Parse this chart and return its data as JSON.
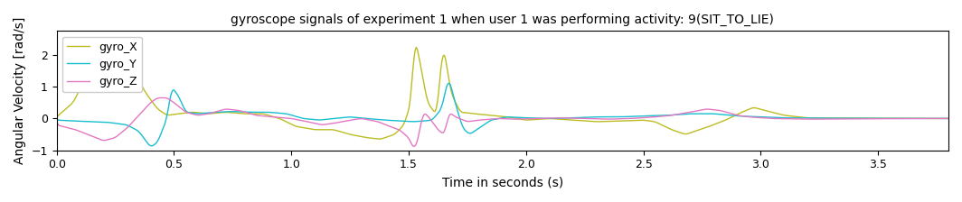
{
  "title": "gyroscope signals of experiment 1 when user 1 was performing activity: 9(SIT_TO_LIE)",
  "xlabel": "Time in seconds (s)",
  "ylabel": "Angular Velocity [rad/s]",
  "xlim": [
    0.0,
    3.8
  ],
  "ylim": [
    -1.0,
    2.75
  ],
  "colors": {
    "gyro_X": "#bcbd22",
    "gyro_Y": "#17becf",
    "gyro_Z": "#e377c2"
  },
  "legend_labels": [
    "gyro_X",
    "gyro_Y",
    "gyro_Z"
  ],
  "figsize": [
    10.64,
    2.24
  ],
  "dpi": 100
}
